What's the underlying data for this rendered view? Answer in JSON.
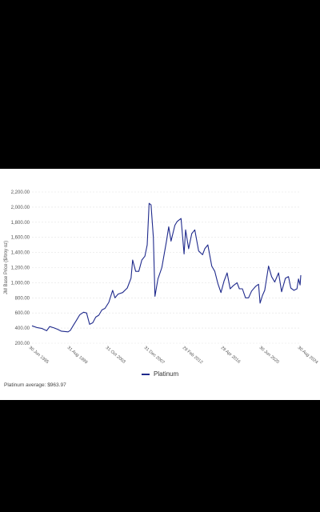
{
  "chart_data": {
    "type": "line",
    "ylabel": "JM Base Price ($/troy oz)",
    "ylim": [
      200,
      2200
    ],
    "yticks": [
      "200.00",
      "400.00",
      "600.00",
      "800.00",
      "1,000.00",
      "1,200.00",
      "1,400.00",
      "1,600.00",
      "1,800.00",
      "2,000.00",
      "2,200.00"
    ],
    "ytick_values": [
      200,
      400,
      600,
      800,
      1000,
      1200,
      1400,
      1600,
      1800,
      2000,
      2200
    ],
    "xlim": [
      "1995-06-30",
      "2024-08-30"
    ],
    "xticks": [
      {
        "label": "30 Jun 1995",
        "date": "1995-06-30"
      },
      {
        "label": "31 Aug 1999",
        "date": "1999-08-31"
      },
      {
        "label": "31 Oct 2003",
        "date": "2003-10-31"
      },
      {
        "label": "31 Dec 2007",
        "date": "2007-12-31"
      },
      {
        "label": "29 Feb 2012",
        "date": "2012-02-29"
      },
      {
        "label": "29 Apr 2016",
        "date": "2016-04-29"
      },
      {
        "label": "30 Jun 2020",
        "date": "2020-06-30"
      },
      {
        "label": "30 Aug 2024",
        "date": "2024-08-30"
      }
    ],
    "grid": true,
    "legend_position": "bottom",
    "series": [
      {
        "name": "Platinum",
        "color": "#1f2a8c",
        "points": [
          [
            "1995-06-30",
            430
          ],
          [
            "1996-01-31",
            405
          ],
          [
            "1996-07-31",
            395
          ],
          [
            "1997-01-31",
            365
          ],
          [
            "1997-05-31",
            420
          ],
          [
            "1997-10-31",
            405
          ],
          [
            "1998-03-31",
            385
          ],
          [
            "1998-08-31",
            360
          ],
          [
            "1999-01-31",
            355
          ],
          [
            "1999-05-31",
            350
          ],
          [
            "1999-08-31",
            370
          ],
          [
            "1999-12-31",
            440
          ],
          [
            "2000-04-30",
            505
          ],
          [
            "2000-08-31",
            575
          ],
          [
            "2001-01-31",
            610
          ],
          [
            "2001-05-31",
            600
          ],
          [
            "2001-09-30",
            450
          ],
          [
            "2002-01-31",
            470
          ],
          [
            "2002-05-31",
            545
          ],
          [
            "2002-09-30",
            570
          ],
          [
            "2003-01-31",
            640
          ],
          [
            "2003-05-31",
            660
          ],
          [
            "2003-10-31",
            740
          ],
          [
            "2004-03-31",
            900
          ],
          [
            "2004-06-30",
            800
          ],
          [
            "2004-10-31",
            850
          ],
          [
            "2005-04-30",
            870
          ],
          [
            "2005-10-31",
            930
          ],
          [
            "2006-03-31",
            1060
          ],
          [
            "2006-05-31",
            1300
          ],
          [
            "2006-09-30",
            1150
          ],
          [
            "2007-01-31",
            1150
          ],
          [
            "2007-05-31",
            1300
          ],
          [
            "2007-09-30",
            1350
          ],
          [
            "2007-12-31",
            1500
          ],
          [
            "2008-03-15",
            2050
          ],
          [
            "2008-05-31",
            2030
          ],
          [
            "2008-08-31",
            1600
          ],
          [
            "2008-10-31",
            820
          ],
          [
            "2009-02-28",
            1050
          ],
          [
            "2009-07-31",
            1200
          ],
          [
            "2010-01-31",
            1550
          ],
          [
            "2010-04-30",
            1740
          ],
          [
            "2010-07-31",
            1550
          ],
          [
            "2010-12-31",
            1760
          ],
          [
            "2011-03-31",
            1810
          ],
          [
            "2011-08-31",
            1850
          ],
          [
            "2011-12-31",
            1380
          ],
          [
            "2012-02-29",
            1700
          ],
          [
            "2012-06-30",
            1450
          ],
          [
            "2012-10-31",
            1650
          ],
          [
            "2013-02-28",
            1700
          ],
          [
            "2013-07-31",
            1420
          ],
          [
            "2013-12-31",
            1370
          ],
          [
            "2014-03-31",
            1450
          ],
          [
            "2014-07-31",
            1500
          ],
          [
            "2014-12-31",
            1220
          ],
          [
            "2015-04-30",
            1150
          ],
          [
            "2015-08-31",
            990
          ],
          [
            "2015-12-31",
            870
          ],
          [
            "2016-04-29",
            1020
          ],
          [
            "2016-08-31",
            1130
          ],
          [
            "2016-12-31",
            920
          ],
          [
            "2017-04-30",
            960
          ],
          [
            "2017-09-30",
            1000
          ],
          [
            "2017-12-31",
            920
          ],
          [
            "2018-04-30",
            920
          ],
          [
            "2018-08-31",
            800
          ],
          [
            "2018-12-31",
            800
          ],
          [
            "2019-04-30",
            890
          ],
          [
            "2019-09-30",
            950
          ],
          [
            "2020-01-31",
            980
          ],
          [
            "2020-03-31",
            730
          ],
          [
            "2020-06-30",
            830
          ],
          [
            "2020-09-30",
            900
          ],
          [
            "2021-02-28",
            1220
          ],
          [
            "2021-06-30",
            1080
          ],
          [
            "2021-10-31",
            1010
          ],
          [
            "2022-03-31",
            1130
          ],
          [
            "2022-07-31",
            880
          ],
          [
            "2022-12-31",
            1060
          ],
          [
            "2023-04-30",
            1080
          ],
          [
            "2023-07-31",
            930
          ],
          [
            "2023-11-30",
            900
          ],
          [
            "2024-03-31",
            920
          ],
          [
            "2024-05-31",
            1050
          ],
          [
            "2024-07-31",
            970
          ],
          [
            "2024-08-30",
            1100
          ]
        ]
      }
    ]
  },
  "legend": {
    "label": "Platinum"
  },
  "footnote": {
    "text": "Platinum average:  $963.97"
  }
}
